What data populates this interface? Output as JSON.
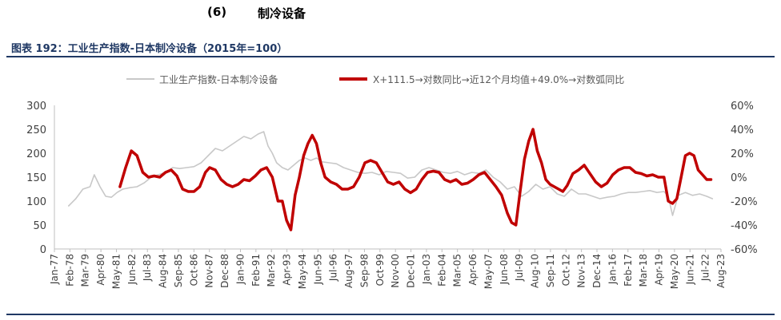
{
  "section": {
    "number": "(6)",
    "title": "制冷设备"
  },
  "figure_title": "图表 192：工业生产指数-日本制冷设备（2015年=100）",
  "colors": {
    "brand": "#1f3864",
    "series_gray": "#c8c8c8",
    "series_red": "#c00000"
  },
  "chart_data": {
    "type": "line",
    "title": "",
    "xlabel": "",
    "ylabel": "",
    "ylim": [
      0,
      300
    ],
    "y2lim": [
      -60,
      60
    ],
    "yticks": [
      "0",
      "50",
      "100",
      "150",
      "200",
      "250",
      "300"
    ],
    "y2ticks": [
      "-60%",
      "-40%",
      "-20%",
      "0%",
      "20%",
      "40%",
      "60%"
    ],
    "x_range": [
      1977.0,
      2023.8
    ],
    "xticks": [
      "Jan-77",
      "Feb-78",
      "Mar-79",
      "Apr-80",
      "May-81",
      "Jun-82",
      "Jul-83",
      "Aug-84",
      "Sep-85",
      "Oct-86",
      "Nov-87",
      "Dec-88",
      "Jan-90",
      "Feb-91",
      "Mar-92",
      "Apr-93",
      "May-94",
      "Jun-95",
      "Jul-96",
      "Aug-97",
      "Sep-98",
      "Oct-99",
      "Nov-00",
      "Dec-01",
      "Jan-03",
      "Feb-04",
      "Mar-05",
      "Apr-06",
      "May-07",
      "Jun-08",
      "Jul-09",
      "Aug-10",
      "Sep-11",
      "Oct-12",
      "Nov-13",
      "Dec-14",
      "Jan-16",
      "Feb-17",
      "Mar-18",
      "Apr-19",
      "May-20",
      "Jun-21",
      "Jul-22",
      "Aug-23"
    ],
    "legend_position": "top",
    "series": [
      {
        "name": "工业生产指数-日本制冷设备",
        "axis": "left",
        "color": "#c8c8c8",
        "x": [
          1978.0,
          1978.5,
          1979.0,
          1979.5,
          1979.8,
          1980.2,
          1980.6,
          1981.0,
          1981.4,
          1981.8,
          1982.3,
          1982.8,
          1983.3,
          1983.8,
          1984.3,
          1984.8,
          1985.3,
          1985.8,
          1986.3,
          1986.8,
          1987.3,
          1987.8,
          1988.3,
          1988.8,
          1989.3,
          1989.8,
          1990.3,
          1990.8,
          1991.3,
          1991.7,
          1992.0,
          1992.3,
          1992.6,
          1993.0,
          1993.4,
          1993.8,
          1994.2,
          1994.6,
          1995.0,
          1995.4,
          1995.8,
          1996.3,
          1996.8,
          1997.3,
          1997.8,
          1998.3,
          1998.8,
          1999.3,
          1999.8,
          2000.3,
          2000.8,
          2001.3,
          2001.8,
          2002.3,
          2002.8,
          2003.3,
          2003.8,
          2004.3,
          2004.8,
          2005.3,
          2005.8,
          2006.3,
          2006.8,
          2007.3,
          2007.8,
          2008.3,
          2008.8,
          2009.3,
          2009.8,
          2010.3,
          2010.8,
          2011.3,
          2011.8,
          2012.3,
          2012.8,
          2013.3,
          2013.8,
          2014.3,
          2014.8,
          2015.3,
          2015.8,
          2016.3,
          2016.8,
          2017.3,
          2017.8,
          2018.3,
          2018.8,
          2019.3,
          2019.8,
          2020.1,
          2020.4,
          2020.8,
          2021.3,
          2021.8,
          2022.3,
          2022.8,
          2023.2
        ],
        "values": [
          90,
          105,
          125,
          130,
          155,
          130,
          110,
          108,
          118,
          125,
          128,
          130,
          138,
          150,
          155,
          160,
          170,
          168,
          170,
          172,
          180,
          195,
          210,
          205,
          215,
          225,
          235,
          230,
          240,
          245,
          215,
          200,
          180,
          170,
          165,
          175,
          185,
          190,
          185,
          190,
          182,
          180,
          178,
          170,
          165,
          160,
          158,
          160,
          155,
          162,
          160,
          158,
          148,
          150,
          165,
          170,
          165,
          160,
          158,
          162,
          155,
          160,
          158,
          165,
          150,
          140,
          125,
          130,
          110,
          120,
          135,
          125,
          130,
          115,
          110,
          125,
          115,
          115,
          110,
          105,
          108,
          110,
          115,
          118,
          118,
          120,
          122,
          118,
          120,
          110,
          70,
          112,
          118,
          112,
          115,
          110,
          105
        ]
      },
      {
        "name": "X+111.5→对数同比→近12个月均值+49.0%→对数弧同比",
        "axis": "right",
        "color": "#c00000",
        "x": [
          1981.6,
          1982.0,
          1982.4,
          1982.8,
          1983.2,
          1983.6,
          1984.0,
          1984.4,
          1984.8,
          1985.2,
          1985.6,
          1986.0,
          1986.4,
          1986.8,
          1987.2,
          1987.6,
          1987.9,
          1988.3,
          1988.7,
          1989.1,
          1989.5,
          1989.9,
          1990.3,
          1990.7,
          1991.1,
          1991.5,
          1991.9,
          1992.3,
          1992.7,
          1993.0,
          1993.3,
          1993.6,
          1993.9,
          1994.2,
          1994.5,
          1994.8,
          1995.1,
          1995.4,
          1995.7,
          1996.0,
          1996.4,
          1996.8,
          1997.2,
          1997.6,
          1998.0,
          1998.4,
          1998.8,
          1999.2,
          1999.6,
          2000.0,
          2000.4,
          2000.8,
          2001.2,
          2001.6,
          2002.0,
          2002.4,
          2002.8,
          2003.2,
          2003.6,
          2004.0,
          2004.4,
          2004.8,
          2005.2,
          2005.6,
          2006.0,
          2006.4,
          2006.8,
          2007.2,
          2007.6,
          2008.0,
          2008.4,
          2008.8,
          2009.1,
          2009.4,
          2009.7,
          2010.0,
          2010.3,
          2010.6,
          2010.9,
          2011.2,
          2011.5,
          2011.8,
          2012.1,
          2012.4,
          2012.7,
          2013.0,
          2013.4,
          2013.8,
          2014.2,
          2014.6,
          2015.0,
          2015.4,
          2015.8,
          2016.2,
          2016.6,
          2017.0,
          2017.4,
          2017.8,
          2018.2,
          2018.6,
          2019.0,
          2019.4,
          2019.8,
          2020.1,
          2020.4,
          2020.7,
          2021.0,
          2021.3,
          2021.6,
          2021.9,
          2022.2,
          2022.5,
          2022.8,
          2023.1
        ],
        "values": [
          -8,
          8,
          22,
          18,
          4,
          0,
          1,
          0,
          4,
          6,
          1,
          -10,
          -12,
          -12,
          -8,
          4,
          8,
          6,
          -2,
          -6,
          -8,
          -6,
          -2,
          -3,
          1,
          6,
          8,
          0,
          -20,
          -20,
          -36,
          -44,
          -15,
          0,
          18,
          28,
          35,
          28,
          12,
          0,
          -4,
          -6,
          -10,
          -10,
          -8,
          0,
          12,
          14,
          12,
          4,
          -4,
          -6,
          -4,
          -10,
          -13,
          -10,
          -2,
          4,
          5,
          4,
          -2,
          -4,
          -2,
          -6,
          -5,
          -2,
          2,
          4,
          -2,
          -8,
          -15,
          -30,
          -38,
          -40,
          -12,
          15,
          30,
          40,
          22,
          12,
          -2,
          -6,
          -8,
          -10,
          -12,
          -7,
          3,
          6,
          10,
          3,
          -4,
          -8,
          -5,
          2,
          6,
          8,
          8,
          4,
          3,
          1,
          2,
          0,
          0,
          -20,
          -22,
          -18,
          0,
          18,
          20,
          18,
          6,
          2,
          -2,
          -2
        ]
      }
    ]
  }
}
